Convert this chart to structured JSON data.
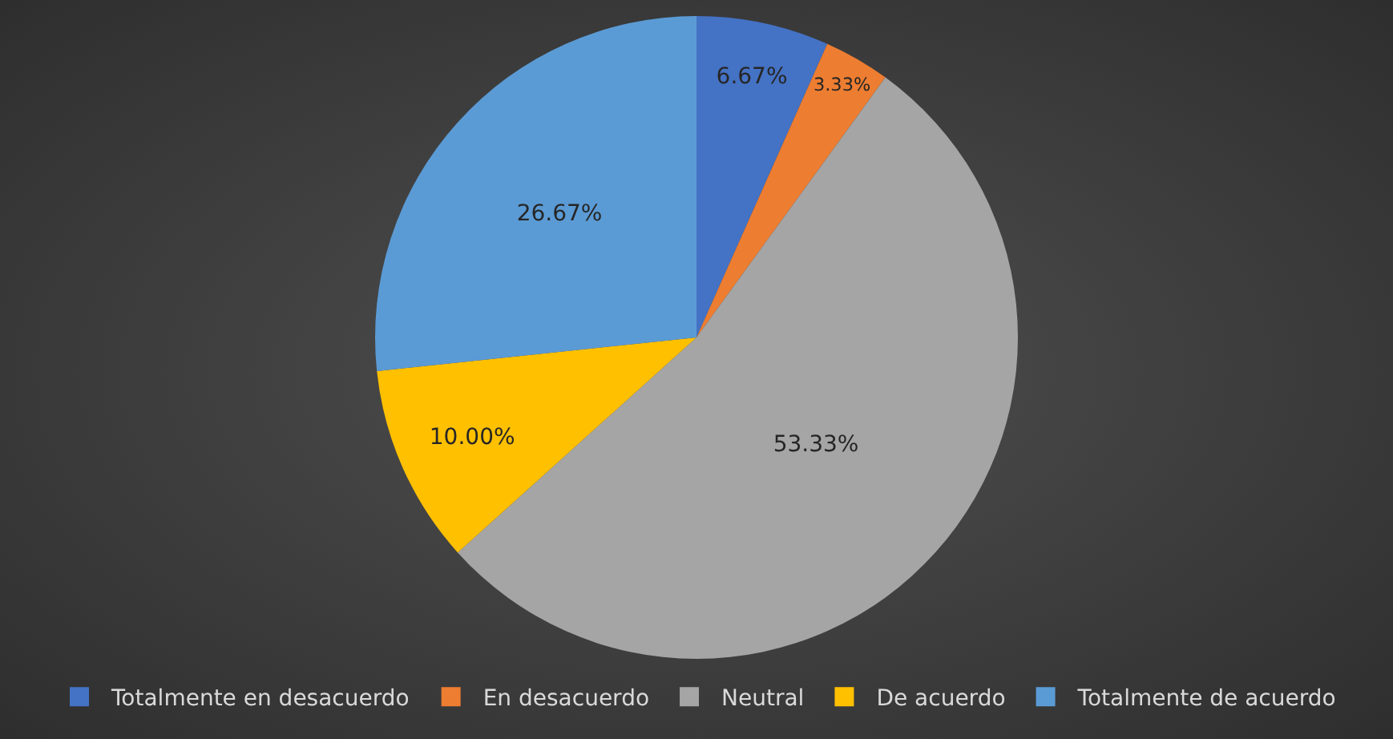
{
  "chart_data": {
    "type": "pie",
    "categories": [
      "Totalmente en desacuerdo",
      "En desacuerdo",
      "Neutral",
      "De acuerdo",
      "Totalmente de acuerdo"
    ],
    "values": [
      6.67,
      3.33,
      53.33,
      10.0,
      26.67
    ],
    "value_labels": [
      "6.67%",
      "3.33%",
      "53.33%",
      "10.00%",
      "26.67%"
    ],
    "colors": [
      "#4472c4",
      "#ed7d31",
      "#a5a5a5",
      "#ffc000",
      "#5b9bd5"
    ],
    "legend": "bottom"
  }
}
